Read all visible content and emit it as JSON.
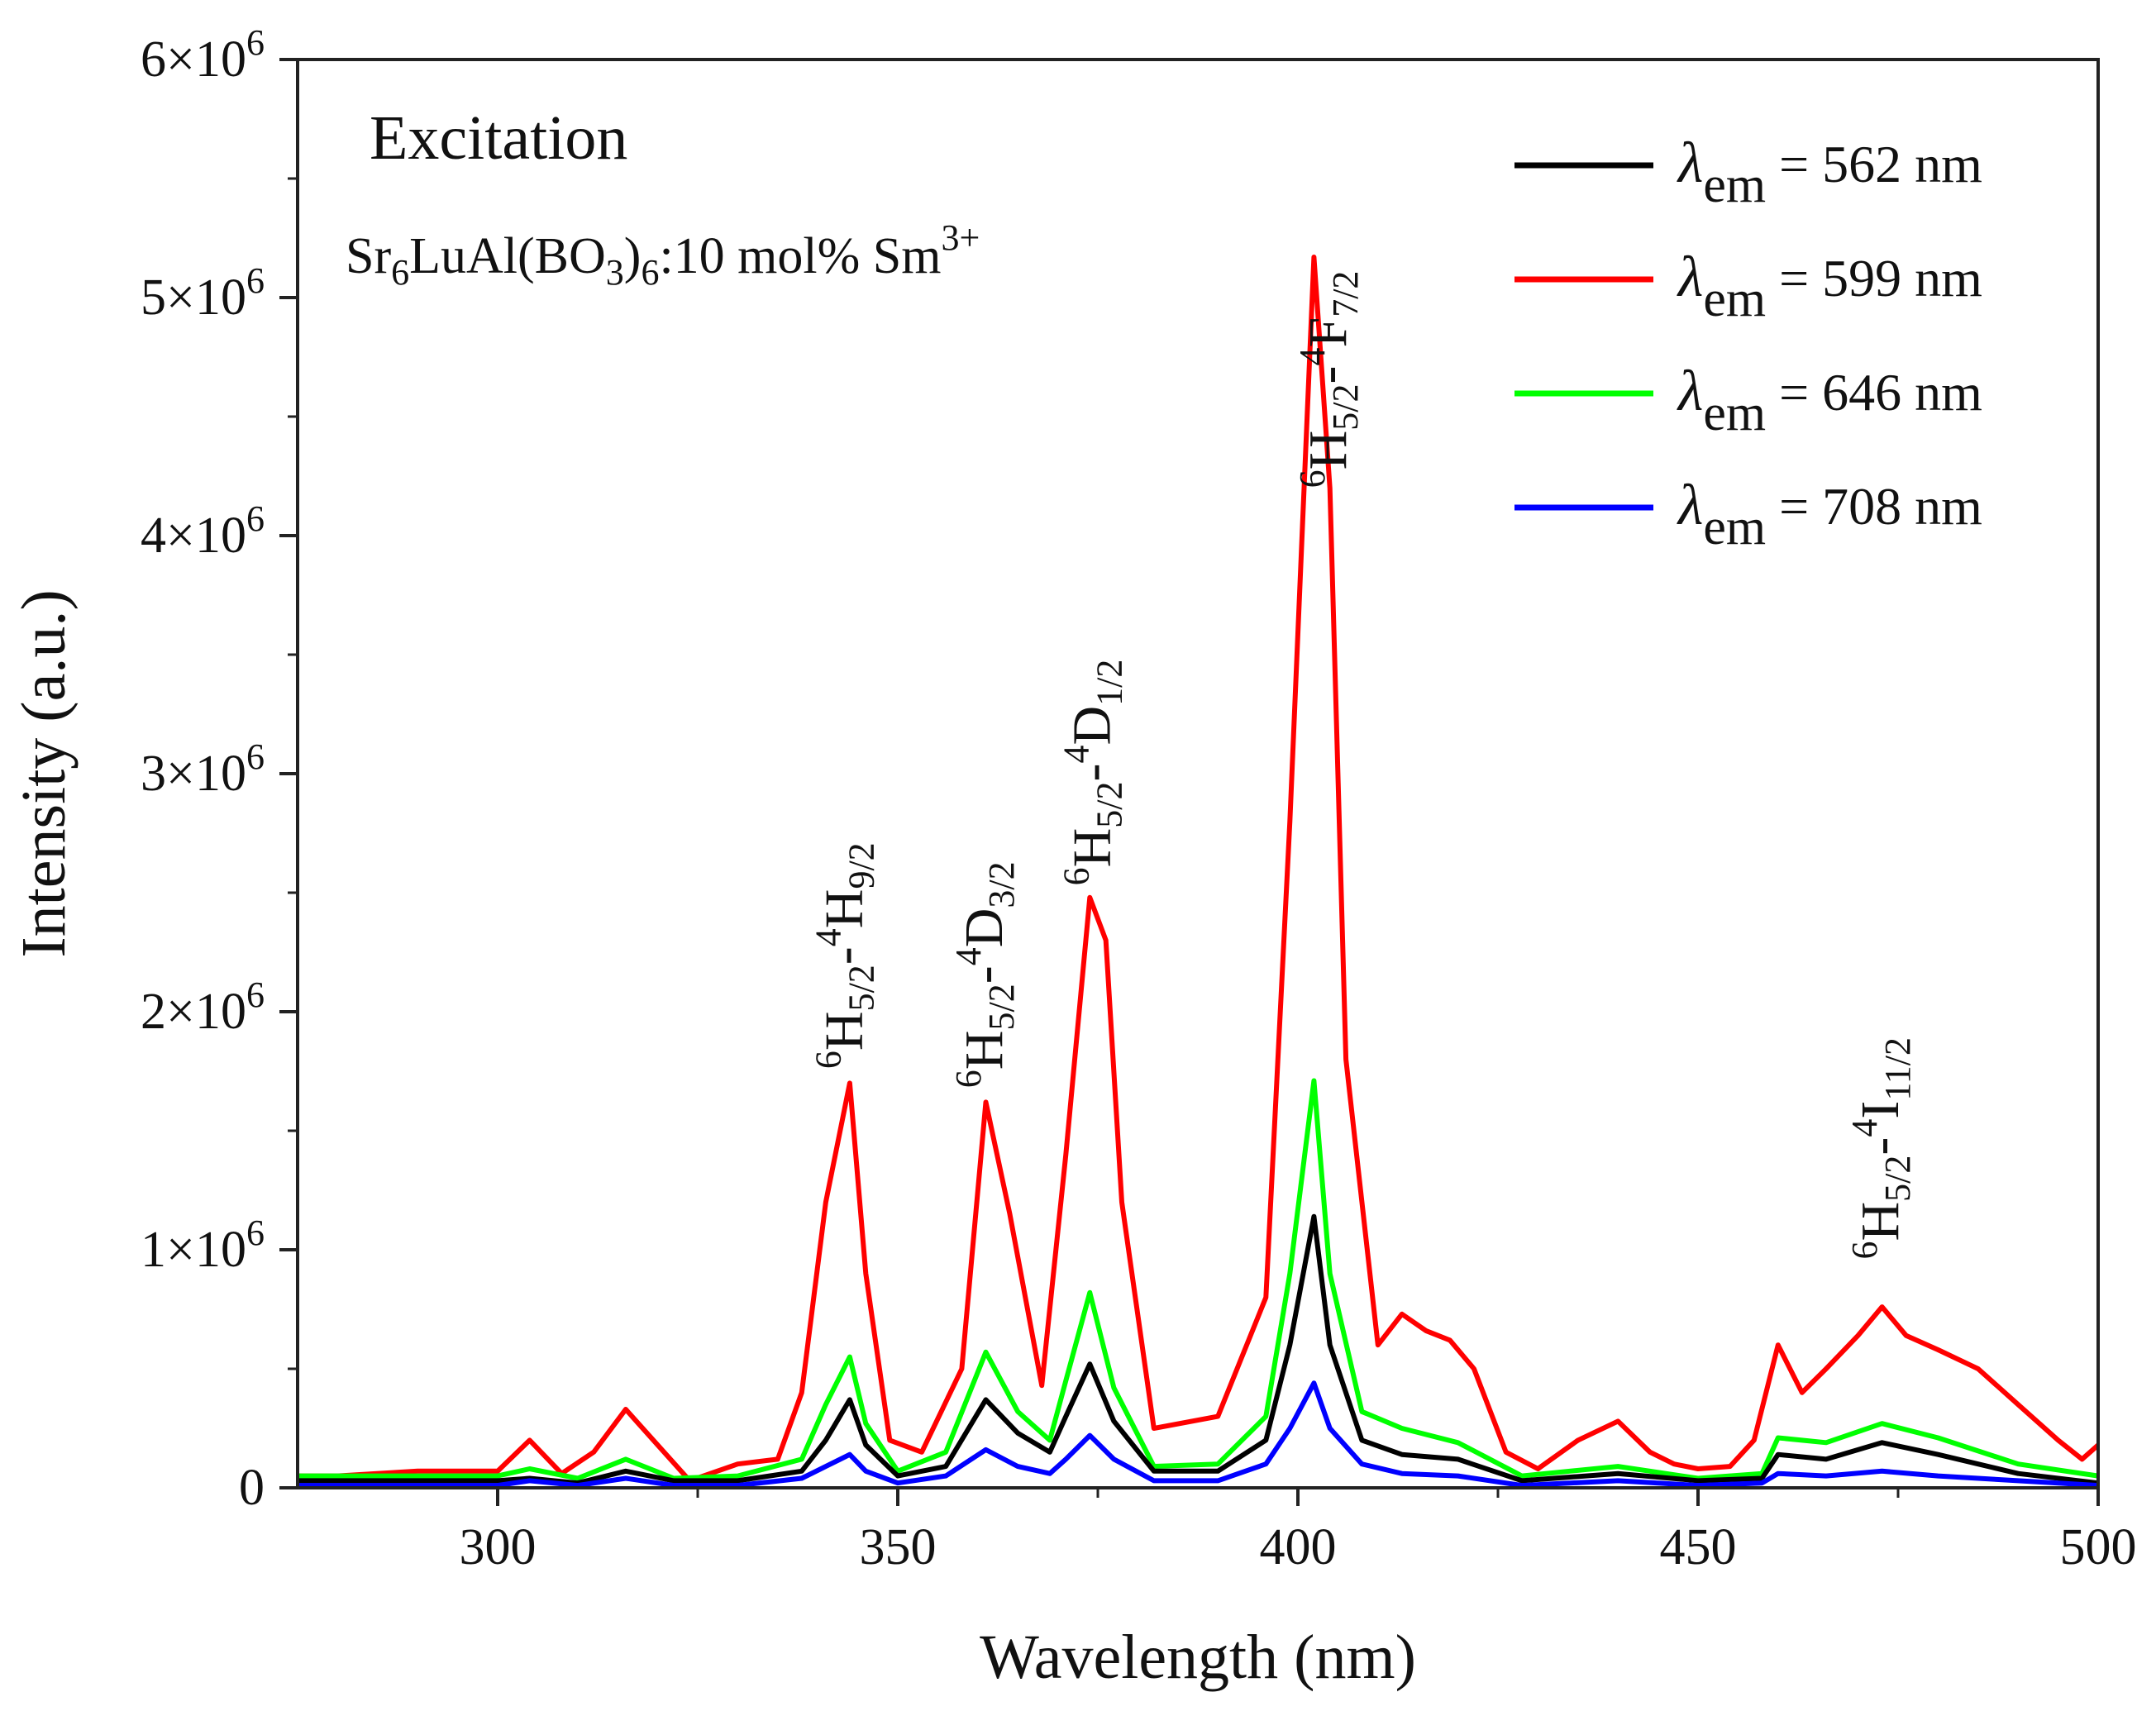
{
  "chart_data": {
    "type": "line",
    "title": "",
    "xlabel": "Wavelength (nm)",
    "ylabel": "Intensity (a.u.)",
    "xlim": [
      275,
      500
    ],
    "ylim": [
      0,
      6000000
    ],
    "x_ticks": [
      300,
      350,
      400,
      450,
      500
    ],
    "y_ticks": [
      {
        "value": 0,
        "mant": "0",
        "exp": ""
      },
      {
        "value": 1000000,
        "mant": "1×10",
        "exp": "6"
      },
      {
        "value": 2000000,
        "mant": "2×10",
        "exp": "6"
      },
      {
        "value": 3000000,
        "mant": "3×10",
        "exp": "6"
      },
      {
        "value": 4000000,
        "mant": "4×10",
        "exp": "6"
      },
      {
        "value": 5000000,
        "mant": "5×10",
        "exp": "6"
      },
      {
        "value": 6000000,
        "mant": "6×10",
        "exp": "6"
      }
    ],
    "panel_label": "Excitation",
    "sample": {
      "part1": "Sr",
      "sub1": "6",
      "part2": "LuAl(BO",
      "sub2": "3",
      "part3": ")",
      "sub3": "6",
      "part4": ":10 mol% Sm",
      "sup": "3+"
    },
    "legend": {
      "symbol": "λ",
      "sub": "em",
      "position": "top-right"
    },
    "series": [
      {
        "name": "λem = 562 nm",
        "label_value": "= 562 nm",
        "color": "#000000",
        "x": [
          275,
          300,
          304,
          310,
          316,
          322,
          330,
          338,
          341,
          344,
          346,
          350,
          356,
          361,
          365,
          369,
          371,
          374,
          377,
          382,
          390,
          396,
          399,
          402,
          404,
          408,
          413,
          420,
          428,
          440,
          450,
          458,
          460,
          466,
          473,
          480,
          490,
          500
        ],
        "y": [
          30000,
          30000,
          40000,
          20000,
          70000,
          30000,
          30000,
          70000,
          200000,
          370000,
          180000,
          50000,
          90000,
          370000,
          230000,
          150000,
          300000,
          520000,
          280000,
          70000,
          70000,
          200000,
          600000,
          1140000,
          600000,
          200000,
          140000,
          120000,
          30000,
          60000,
          30000,
          40000,
          140000,
          120000,
          190000,
          140000,
          60000,
          20000
        ]
      },
      {
        "name": "λem = 599 nm",
        "label_value": "= 599 nm",
        "color": "#ff0000",
        "x": [
          275,
          280,
          290,
          300,
          304,
          308,
          312,
          316,
          320,
          324,
          330,
          335,
          338,
          341,
          344,
          346,
          349,
          353,
          358,
          361,
          364,
          368,
          371,
          374,
          376,
          378,
          382,
          390,
          396,
          399,
          402,
          404,
          406,
          410,
          413,
          416,
          419,
          422,
          426,
          430,
          435,
          440,
          444,
          447,
          450,
          454,
          457,
          460,
          463,
          466,
          470,
          473,
          476,
          480,
          485,
          490,
          495,
          498,
          500
        ],
        "y": [
          50000,
          50000,
          70000,
          70000,
          200000,
          60000,
          150000,
          330000,
          180000,
          30000,
          100000,
          120000,
          400000,
          1200000,
          1700000,
          900000,
          200000,
          150000,
          500000,
          1620000,
          1150000,
          430000,
          1400000,
          2480000,
          2300000,
          1200000,
          250000,
          300000,
          800000,
          2800000,
          5170000,
          4200000,
          1800000,
          600000,
          730000,
          660000,
          620000,
          500000,
          150000,
          80000,
          200000,
          280000,
          150000,
          100000,
          80000,
          90000,
          200000,
          600000,
          400000,
          500000,
          640000,
          760000,
          640000,
          580000,
          500000,
          350000,
          200000,
          120000,
          180000
        ]
      },
      {
        "name": "λem = 646 nm",
        "label_value": "= 646 nm",
        "color": "#00ff00",
        "x": [
          275,
          300,
          304,
          310,
          316,
          322,
          330,
          338,
          341,
          344,
          346,
          350,
          356,
          361,
          365,
          369,
          371,
          374,
          377,
          382,
          390,
          396,
          399,
          402,
          404,
          408,
          413,
          420,
          428,
          440,
          450,
          458,
          460,
          466,
          473,
          480,
          490,
          500
        ],
        "y": [
          50000,
          50000,
          80000,
          40000,
          120000,
          40000,
          50000,
          120000,
          350000,
          550000,
          270000,
          70000,
          150000,
          570000,
          320000,
          200000,
          450000,
          820000,
          420000,
          90000,
          100000,
          300000,
          900000,
          1710000,
          900000,
          320000,
          250000,
          190000,
          50000,
          90000,
          40000,
          60000,
          210000,
          190000,
          270000,
          210000,
          100000,
          50000
        ]
      },
      {
        "name": "λem = 708 nm",
        "label_value": "= 708 nm",
        "color": "#0000ff",
        "x": [
          275,
          300,
          304,
          310,
          316,
          322,
          330,
          338,
          341,
          344,
          346,
          350,
          356,
          361,
          365,
          369,
          371,
          374,
          377,
          382,
          390,
          396,
          399,
          402,
          404,
          408,
          413,
          420,
          428,
          440,
          450,
          458,
          460,
          466,
          473,
          480,
          490,
          500
        ],
        "y": [
          10000,
          10000,
          30000,
          10000,
          40000,
          10000,
          10000,
          40000,
          90000,
          140000,
          70000,
          20000,
          50000,
          160000,
          90000,
          60000,
          120000,
          220000,
          120000,
          30000,
          30000,
          100000,
          250000,
          440000,
          250000,
          100000,
          60000,
          50000,
          10000,
          30000,
          10000,
          20000,
          60000,
          50000,
          70000,
          50000,
          30000,
          10000
        ]
      }
    ],
    "annotations": [
      {
        "x_data": 345.5,
        "y_data": 1760000,
        "s1": "6",
        "t1": "H",
        "b1": "5/2",
        "dash": "-",
        "s2": "4",
        "t2": "H",
        "b2": "9/2"
      },
      {
        "x_data": 363.0,
        "y_data": 1680000,
        "s1": "6",
        "t1": "H",
        "b1": "5/2",
        "dash": "-",
        "s2": "4",
        "t2": "D",
        "b2": "3/2"
      },
      {
        "x_data": 376.5,
        "y_data": 2530000,
        "s1": "6",
        "t1": "H",
        "b1": "5/2",
        "dash": "-",
        "s2": "4",
        "t2": "D",
        "b2": "1/2"
      },
      {
        "x_data": 406.0,
        "y_data": 4200000,
        "s1": "6",
        "t1": "H",
        "b1": "5/2",
        "dash": "-",
        "s2": "4",
        "t2": "F",
        "b2": "7/2"
      },
      {
        "x_data": 475.0,
        "y_data": 960000,
        "s1": "6",
        "t1": "H",
        "b1": "5/2",
        "dash": "-",
        "s2": "4",
        "t2": "I",
        "b2": "11/2"
      }
    ]
  }
}
